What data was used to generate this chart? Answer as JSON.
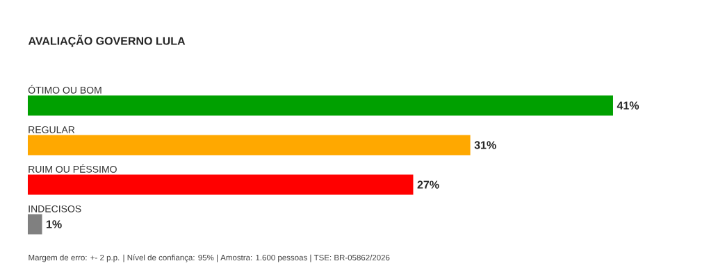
{
  "chart_data": {
    "type": "bar",
    "orientation": "horizontal",
    "title": "AVALIAÇÃO GOVERNO LULA",
    "categories": [
      "ÓTIMO OU BOM",
      "REGULAR",
      "RUIM OU PÉSSIMO",
      "INDECISOS"
    ],
    "values": [
      41,
      31,
      27,
      1
    ],
    "colors": [
      "#00a000",
      "#ffa800",
      "#ff0000",
      "#808080"
    ],
    "value_labels": [
      "41%",
      "31%",
      "27%",
      "1%"
    ],
    "annotations": [
      "Margem de erro: +- 2 p.p. | Nível de confiança: 95% | Amostra: 1.600 pessoas | TSE: BR-05862/2026"
    ]
  }
}
